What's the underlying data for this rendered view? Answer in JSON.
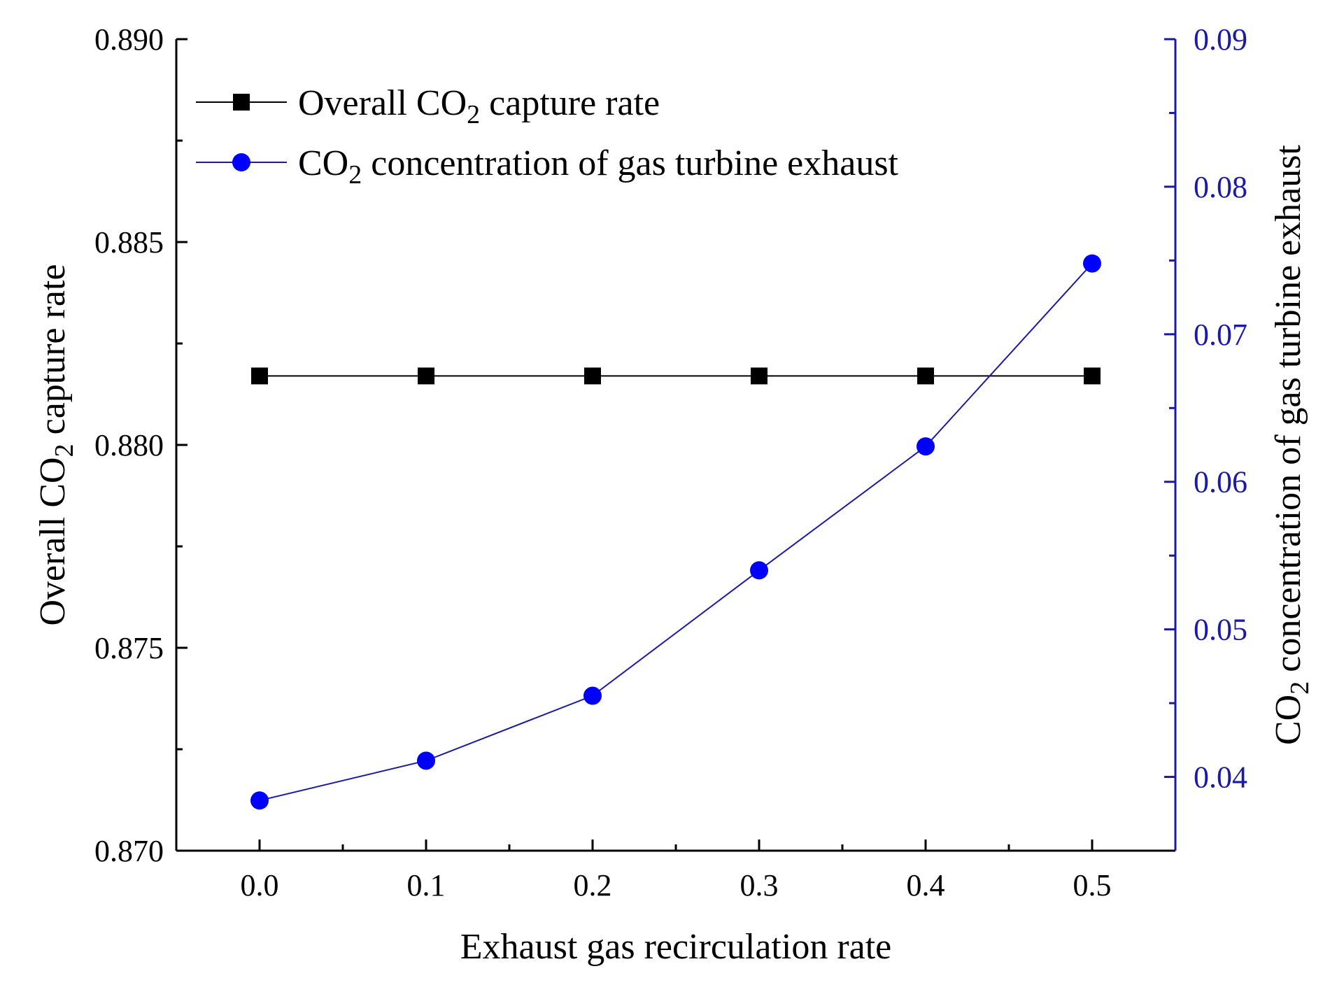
{
  "chart_data": {
    "type": "line",
    "title": "",
    "xlabel": "Exhaust gas recirculation rate",
    "x": [
      0.0,
      0.1,
      0.2,
      0.3,
      0.4,
      0.5
    ],
    "x_tick_labels": [
      "0.0",
      "0.1",
      "0.2",
      "0.3",
      "0.4",
      "0.5"
    ],
    "xlim": [
      -0.05,
      0.55
    ],
    "y_left": {
      "label_prefix": "Overall CO",
      "label_sub": "2",
      "label_suffix": " capture rate",
      "lim": [
        0.87,
        0.89
      ],
      "tick_values": [
        0.87,
        0.875,
        0.88,
        0.885,
        0.89
      ],
      "tick_labels": [
        "0.870",
        "0.875",
        "0.880",
        "0.885",
        "0.890"
      ],
      "color": "#000000"
    },
    "y_right": {
      "label_prefix": "CO",
      "label_sub": "2",
      "label_suffix": " concentration of gas turbine exhaust",
      "lim": [
        0.035,
        0.09
      ],
      "tick_values": [
        0.04,
        0.05,
        0.06,
        0.07,
        0.08,
        0.09
      ],
      "tick_labels": [
        "0.04",
        "0.05",
        "0.06",
        "0.07",
        "0.08",
        "0.09"
      ],
      "color": "#1a1aa6"
    },
    "series": [
      {
        "name_prefix": "Overall CO",
        "name_sub": "2",
        "name_suffix": " capture rate",
        "axis": "left",
        "marker": "square",
        "color": "#000000",
        "values": [
          0.8817,
          0.8817,
          0.8817,
          0.8817,
          0.8817,
          0.8817
        ]
      },
      {
        "name_prefix": "CO",
        "name_sub": "2",
        "name_suffix": " concentration of gas turbine exhaust",
        "axis": "right",
        "marker": "circle",
        "color": "#0000ff",
        "line_color": "#1a1aa6",
        "values": [
          0.0384,
          0.0411,
          0.0455,
          0.054,
          0.0624,
          0.0748
        ]
      }
    ],
    "legend": "top-left",
    "grid": false
  }
}
